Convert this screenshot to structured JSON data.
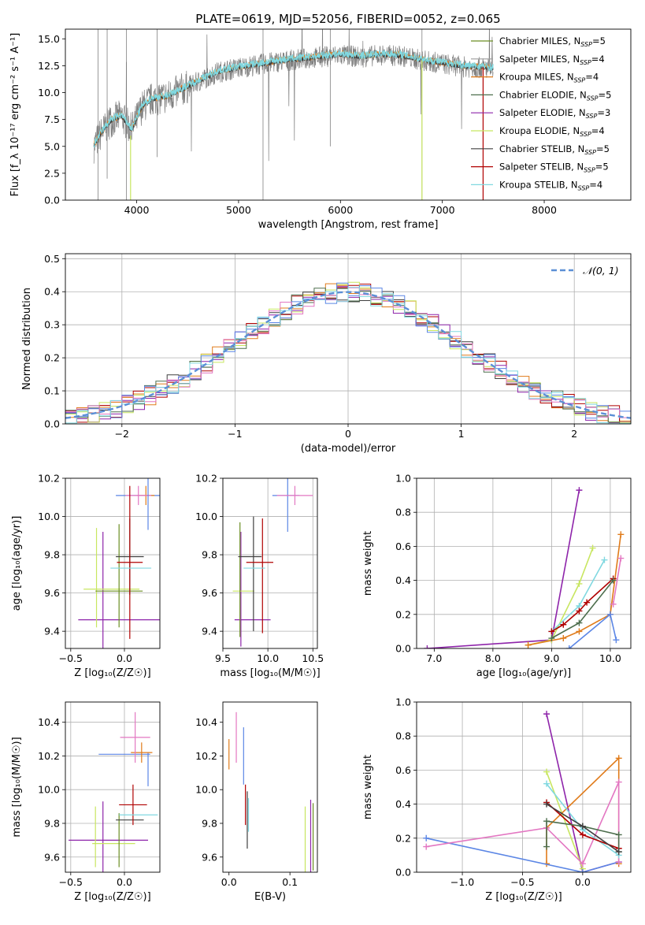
{
  "figure_title": "PLATE=0619, MJD=52056, FIBERID=0052, z=0.065",
  "colors": {
    "chabrier_miles": "#6b8e23",
    "salpeter_miles": "#9c9c9c",
    "kroupa_miles": "#e07b1a",
    "chabrier_elodie": "#4d6e4d",
    "salpeter_elodie": "#8e24aa",
    "kroupa_elodie": "#c8e660",
    "chabrier_stelib": "#404040",
    "salpeter_stelib": "#b00000",
    "kroupa_stelib": "#80d8e0",
    "blue": "#5b86e5",
    "pink": "#e377c2",
    "normal_curve": "#5b8fd6",
    "grid": "#b0b0b0"
  },
  "chart_data": [
    {
      "id": "spectrum",
      "type": "line",
      "title": "PLATE=0619, MJD=52056, FIBERID=0052, z=0.065",
      "xlabel": "wavelength [Angstrom, rest frame]",
      "ylabel": "Flux [f_λ 10⁻¹⁷ erg cm⁻² s⁻¹ A⁻¹]",
      "xlim": [
        3300,
        8850
      ],
      "ylim": [
        0,
        15.9
      ],
      "xticks": [
        4000,
        5000,
        6000,
        7000,
        8000
      ],
      "yticks": [
        0.0,
        2.5,
        5.0,
        7.5,
        10.0,
        12.5,
        15.0
      ],
      "grid": false,
      "legend_position": "upper-right",
      "legend": [
        {
          "label": "Chabrier MILES, N",
          "sub": "SSP",
          "suffix": "=5",
          "color": "#6b8e23"
        },
        {
          "label": "Salpeter MILES, N",
          "sub": "SSP",
          "suffix": "=4",
          "color": "#9c9c9c"
        },
        {
          "label": "Kroupa MILES, N",
          "sub": "SSP",
          "suffix": "=4",
          "color": "#e07b1a"
        },
        {
          "label": "Chabrier ELODIE, N",
          "sub": "SSP",
          "suffix": "=5",
          "color": "#4d6e4d"
        },
        {
          "label": "Salpeter ELODIE, N",
          "sub": "SSP",
          "suffix": "=3",
          "color": "#8e24aa"
        },
        {
          "label": "Kroupa ELODIE, N",
          "sub": "SSP",
          "suffix": "=4",
          "color": "#c8e660"
        },
        {
          "label": "Chabrier STELIB, N",
          "sub": "SSP",
          "suffix": "=5",
          "color": "#404040"
        },
        {
          "label": "Salpeter STELIB, N",
          "sub": "SSP",
          "suffix": "=5",
          "color": "#b00000"
        },
        {
          "label": "Kroupa STELIB, N",
          "sub": "SSP",
          "suffix": "=4",
          "color": "#80d8e0"
        }
      ],
      "continuum": {
        "x": [
          3580,
          3650,
          3750,
          3850,
          3950,
          4050,
          4150,
          4300,
          4450,
          4600,
          4800,
          5000,
          5200,
          5400,
          5600,
          5800,
          6000,
          6200,
          6400,
          6600,
          6800,
          7000,
          7200,
          7400,
          7500
        ],
        "y": [
          5.0,
          6.2,
          7.4,
          7.8,
          6.5,
          8.6,
          9.4,
          9.6,
          10.3,
          11.0,
          11.9,
          12.3,
          12.6,
          12.9,
          13.1,
          13.3,
          13.5,
          13.3,
          13.5,
          13.4,
          13.0,
          12.7,
          12.4,
          12.3,
          12.2
        ]
      }
    },
    {
      "id": "residuals",
      "type": "step",
      "xlabel": "(data-model)/error",
      "ylabel": "Normed distribution",
      "xlim": [
        -2.5,
        2.5
      ],
      "ylim": [
        0,
        0.515
      ],
      "xticks": [
        -2,
        -1,
        0,
        1,
        2
      ],
      "yticks": [
        0.0,
        0.1,
        0.2,
        0.3,
        0.4,
        0.5
      ],
      "grid": true,
      "legend": [
        {
          "label": "𝒩(0, 1)",
          "color": "#5b8fd6",
          "style": "dashed"
        }
      ],
      "bin_width": 0.1,
      "bin_start": -2.5,
      "normal_mu": 0,
      "normal_sigma": 1
    },
    {
      "id": "age-vs-z",
      "type": "errorbar",
      "xlabel": "Z [log₁₀(Z/Z☉)]",
      "ylabel": "age [log₁₀(age/yr)]",
      "xlim": [
        -0.55,
        0.33
      ],
      "ylim": [
        9.31,
        10.2
      ],
      "xticks": [
        -0.5,
        0.0
      ],
      "xticklabels": [
        "−0.5",
        "0.0"
      ],
      "yticks": [
        9.4,
        9.6,
        9.8,
        10.0,
        10.2
      ],
      "grid": true,
      "points": [
        {
          "x": 0.14,
          "y": 10.11,
          "xerr": 0.22,
          "yerr": 0.0,
          "color": "#5b86e5"
        },
        {
          "x": 0.2,
          "y": 10.11,
          "xerr": 0.08,
          "yerr": 0.05,
          "color": "#e07b1a"
        },
        {
          "x": 0.13,
          "y": 10.11,
          "xerr": 0.12,
          "yerr": 0.05,
          "color": "#e377c2"
        },
        {
          "x": 0.22,
          "y": 10.09,
          "xerr": 0.0,
          "yerr": 0.16,
          "color": "#5b86e5"
        },
        {
          "x": -0.05,
          "y": 9.46,
          "xerr": 0.38,
          "yerr": 0.0,
          "color": "#8e24aa"
        },
        {
          "x": -0.2,
          "y": 9.61,
          "xerr": 0.0,
          "yerr": 0.31,
          "color": "#8e24aa"
        },
        {
          "x": -0.26,
          "y": 9.68,
          "xerr": 0.0,
          "yerr": 0.26,
          "color": "#c8e660"
        },
        {
          "x": -0.12,
          "y": 9.62,
          "xerr": 0.26,
          "yerr": 0.0,
          "color": "#c8e660"
        },
        {
          "x": -0.05,
          "y": 9.61,
          "xerr": 0.22,
          "yerr": 0.0,
          "color": "#6b8e23"
        },
        {
          "x": -0.05,
          "y": 9.69,
          "xerr": 0.0,
          "yerr": 0.27,
          "color": "#6b8e23"
        },
        {
          "x": 0.05,
          "y": 9.79,
          "xerr": 0.13,
          "yerr": 0.2,
          "color": "#404040"
        },
        {
          "x": 0.05,
          "y": 9.76,
          "xerr": 0.12,
          "yerr": 0.4,
          "color": "#b00000"
        },
        {
          "x": 0.06,
          "y": 9.73,
          "xerr": 0.19,
          "yerr": 0.0,
          "color": "#80d8e0"
        }
      ]
    },
    {
      "id": "age-vs-mass",
      "type": "errorbar",
      "xlabel": "mass [log₁₀(M/M☉)]",
      "xlim": [
        9.5,
        10.55
      ],
      "ylim": [
        9.31,
        10.2
      ],
      "xticks": [
        9.5,
        10.0,
        10.5
      ],
      "yticks": [
        9.4,
        9.6,
        9.8,
        10.0,
        10.2
      ],
      "grid": true,
      "points": [
        {
          "x": 10.2,
          "y": 10.11,
          "xerr": 0.15,
          "yerr": 0.0,
          "color": "#5b86e5"
        },
        {
          "x": 10.22,
          "y": 10.09,
          "xerr": 0.0,
          "yerr": 0.17,
          "color": "#5b86e5"
        },
        {
          "x": 10.3,
          "y": 10.11,
          "xerr": 0.2,
          "yerr": 0.05,
          "color": "#e377c2"
        },
        {
          "x": 9.83,
          "y": 9.46,
          "xerr": 0.2,
          "yerr": 0.0,
          "color": "#8e24aa"
        },
        {
          "x": 9.7,
          "y": 9.62,
          "xerr": 0.0,
          "yerr": 0.3,
          "color": "#8e24aa"
        },
        {
          "x": 9.73,
          "y": 9.61,
          "xerr": 0.12,
          "yerr": 0.0,
          "color": "#c8e660"
        },
        {
          "x": 9.69,
          "y": 9.67,
          "xerr": 0.0,
          "yerr": 0.3,
          "color": "#6b8e23"
        },
        {
          "x": 9.8,
          "y": 9.79,
          "xerr": 0.13,
          "yerr": 0.0,
          "color": "#404040"
        },
        {
          "x": 9.84,
          "y": 9.7,
          "xerr": 0.0,
          "yerr": 0.3,
          "color": "#404040"
        },
        {
          "x": 9.91,
          "y": 9.76,
          "xerr": 0.15,
          "yerr": 0.0,
          "color": "#b00000"
        },
        {
          "x": 9.94,
          "y": 9.69,
          "xerr": 0.0,
          "yerr": 0.3,
          "color": "#b00000"
        },
        {
          "x": 9.85,
          "y": 9.73,
          "xerr": 0.12,
          "yerr": 0.0,
          "color": "#80d8e0"
        }
      ]
    },
    {
      "id": "weight-vs-age",
      "type": "line",
      "xlabel": "age  [log₁₀(age/yr)]",
      "ylabel": "mass weight",
      "xlim": [
        6.7,
        10.35
      ],
      "ylim": [
        0,
        1.0
      ],
      "xticks": [
        7,
        8,
        9,
        10
      ],
      "yticks": [
        0.0,
        0.2,
        0.4,
        0.6,
        0.8,
        1.0
      ],
      "grid": true,
      "series": [
        {
          "color": "#8e24aa",
          "x": [
            6.88,
            9.0,
            9.47
          ],
          "y": [
            0.0,
            0.05,
            0.93
          ]
        },
        {
          "color": "#c8e660",
          "x": [
            8.6,
            9.0,
            9.47,
            9.7
          ],
          "y": [
            0.02,
            0.05,
            0.38,
            0.59
          ]
        },
        {
          "color": "#e07b1a",
          "x": [
            8.6,
            9.2,
            9.47,
            10.0,
            10.18
          ],
          "y": [
            0.02,
            0.06,
            0.1,
            0.2,
            0.67
          ]
        },
        {
          "color": "#5b86e5",
          "x": [
            9.3,
            10.0,
            10.1
          ],
          "y": [
            0.0,
            0.2,
            0.05
          ]
        },
        {
          "color": "#80d8e0",
          "x": [
            9.0,
            9.47,
            9.9
          ],
          "y": [
            0.1,
            0.25,
            0.52
          ]
        },
        {
          "color": "#b00000",
          "x": [
            9.0,
            9.2,
            9.47,
            9.6,
            10.05
          ],
          "y": [
            0.1,
            0.14,
            0.22,
            0.27,
            0.41
          ]
        },
        {
          "color": "#4d6e4d",
          "x": [
            9.0,
            9.47,
            10.05
          ],
          "y": [
            0.06,
            0.15,
            0.4
          ]
        },
        {
          "color": "#e377c2",
          "x": [
            10.05,
            10.18
          ],
          "y": [
            0.26,
            0.53
          ]
        }
      ]
    },
    {
      "id": "mass-vs-z",
      "type": "errorbar",
      "xlabel": "Z [log₁₀(Z/Z☉)]",
      "ylabel": "mass [log₁₀(M/M☉)]",
      "xlim": [
        -0.55,
        0.33
      ],
      "ylim": [
        9.51,
        10.52
      ],
      "xticks": [
        -0.5,
        0.0
      ],
      "xticklabels": [
        "−0.5",
        "0.0"
      ],
      "yticks": [
        9.6,
        9.8,
        10.0,
        10.2,
        10.4
      ],
      "grid": true,
      "points": [
        {
          "x": 0.0,
          "y": 10.21,
          "xerr": 0.24,
          "yerr": 0.0,
          "color": "#5b86e5"
        },
        {
          "x": 0.22,
          "y": 10.12,
          "xerr": 0.0,
          "yerr": 0.1,
          "color": "#5b86e5"
        },
        {
          "x": 0.16,
          "y": 10.22,
          "xerr": 0.1,
          "yerr": 0.06,
          "color": "#e07b1a"
        },
        {
          "x": 0.1,
          "y": 10.31,
          "xerr": 0.14,
          "yerr": 0.15,
          "color": "#e377c2"
        },
        {
          "x": -0.15,
          "y": 9.7,
          "xerr": 0.37,
          "yerr": 0.0,
          "color": "#8e24aa"
        },
        {
          "x": -0.2,
          "y": 9.72,
          "xerr": 0.0,
          "yerr": 0.21,
          "color": "#8e24aa"
        },
        {
          "x": -0.1,
          "y": 9.68,
          "xerr": 0.2,
          "yerr": 0.0,
          "color": "#c8e660"
        },
        {
          "x": -0.27,
          "y": 9.72,
          "xerr": 0.0,
          "yerr": 0.18,
          "color": "#c8e660"
        },
        {
          "x": -0.05,
          "y": 9.7,
          "xerr": 0.0,
          "yerr": 0.16,
          "color": "#6b8e23"
        },
        {
          "x": 0.05,
          "y": 9.82,
          "xerr": 0.13,
          "yerr": 0.0,
          "color": "#404040"
        },
        {
          "x": 0.08,
          "y": 9.91,
          "xerr": 0.13,
          "yerr": 0.12,
          "color": "#b00000"
        },
        {
          "x": 0.13,
          "y": 9.85,
          "xerr": 0.18,
          "yerr": 0.0,
          "color": "#80d8e0"
        }
      ]
    },
    {
      "id": "mass-vs-ebv",
      "type": "errorbar",
      "xlabel": "E(B-V)",
      "xlim": [
        -0.01,
        0.145
      ],
      "ylim": [
        9.51,
        10.52
      ],
      "xticks": [
        0.0,
        0.1
      ],
      "yticks": [
        9.6,
        9.8,
        10.0,
        10.2,
        10.4
      ],
      "grid": false,
      "points": [
        {
          "x": 0.0,
          "y": 10.21,
          "xerr": 0.0,
          "yerr": 0.09,
          "color": "#e07b1a"
        },
        {
          "x": 0.012,
          "y": 10.31,
          "xerr": 0.0,
          "yerr": 0.15,
          "color": "#e377c2"
        },
        {
          "x": 0.024,
          "y": 10.2,
          "xerr": 0.0,
          "yerr": 0.17,
          "color": "#5b86e5"
        },
        {
          "x": 0.027,
          "y": 9.91,
          "xerr": 0.0,
          "yerr": 0.12,
          "color": "#b00000"
        },
        {
          "x": 0.03,
          "y": 9.82,
          "xerr": 0.0,
          "yerr": 0.17,
          "color": "#404040"
        },
        {
          "x": 0.032,
          "y": 9.85,
          "xerr": 0.0,
          "yerr": 0.1,
          "color": "#80d8e0"
        },
        {
          "x": 0.125,
          "y": 9.69,
          "xerr": 0.0,
          "yerr": 0.21,
          "color": "#c8e660"
        },
        {
          "x": 0.134,
          "y": 9.72,
          "xerr": 0.0,
          "yerr": 0.22,
          "color": "#8e24aa"
        },
        {
          "x": 0.138,
          "y": 9.72,
          "xerr": 0.0,
          "yerr": 0.2,
          "color": "#6b8e23"
        }
      ]
    },
    {
      "id": "weight-vs-z",
      "type": "line",
      "xlabel": "Z [log₁₀(Z/Z☉)]",
      "ylabel": "mass weight",
      "xlim": [
        -1.38,
        0.4
      ],
      "ylim": [
        0,
        1.0
      ],
      "xticks": [
        -1.0,
        -0.5,
        0.0
      ],
      "xticklabels": [
        "−1.0",
        "−0.5",
        "0.0"
      ],
      "yticks": [
        0.0,
        0.2,
        0.4,
        0.6,
        0.8,
        1.0
      ],
      "grid": true,
      "series": [
        {
          "color": "#8e24aa",
          "x": [
            -0.3,
            0.0,
            0.3
          ],
          "y": [
            0.93,
            0.0,
            0.06
          ]
        },
        {
          "color": "#c8e660",
          "x": [
            -0.3,
            0.0
          ],
          "y": [
            0.59,
            0.02
          ]
        },
        {
          "color": "#e07b1a",
          "x": [
            -0.3,
            -0.3,
            0.3,
            0.3
          ],
          "y": [
            0.05,
            0.26,
            0.67,
            0.05
          ]
        },
        {
          "color": "#5b86e5",
          "x": [
            -1.3,
            0.0,
            0.3
          ],
          "y": [
            0.2,
            0.0,
            0.06
          ]
        },
        {
          "color": "#e377c2",
          "x": [
            -1.3,
            -0.3,
            0.0,
            0.3,
            0.3
          ],
          "y": [
            0.15,
            0.26,
            0.05,
            0.53,
            0.06
          ]
        },
        {
          "color": "#80d8e0",
          "x": [
            -0.3,
            0.0,
            0.3
          ],
          "y": [
            0.52,
            0.25,
            0.1
          ]
        },
        {
          "color": "#b00000",
          "x": [
            -0.3,
            0.0,
            0.3
          ],
          "y": [
            0.41,
            0.22,
            0.14
          ]
        },
        {
          "color": "#4d6e4d",
          "x": [
            -0.3,
            -0.3,
            0.0,
            0.3,
            0.3
          ],
          "y": [
            0.15,
            0.3,
            0.27,
            0.22,
            0.12
          ]
        },
        {
          "color": "#404040",
          "x": [
            -0.3,
            0.0,
            0.3
          ],
          "y": [
            0.4,
            0.27,
            0.12
          ]
        }
      ]
    }
  ]
}
